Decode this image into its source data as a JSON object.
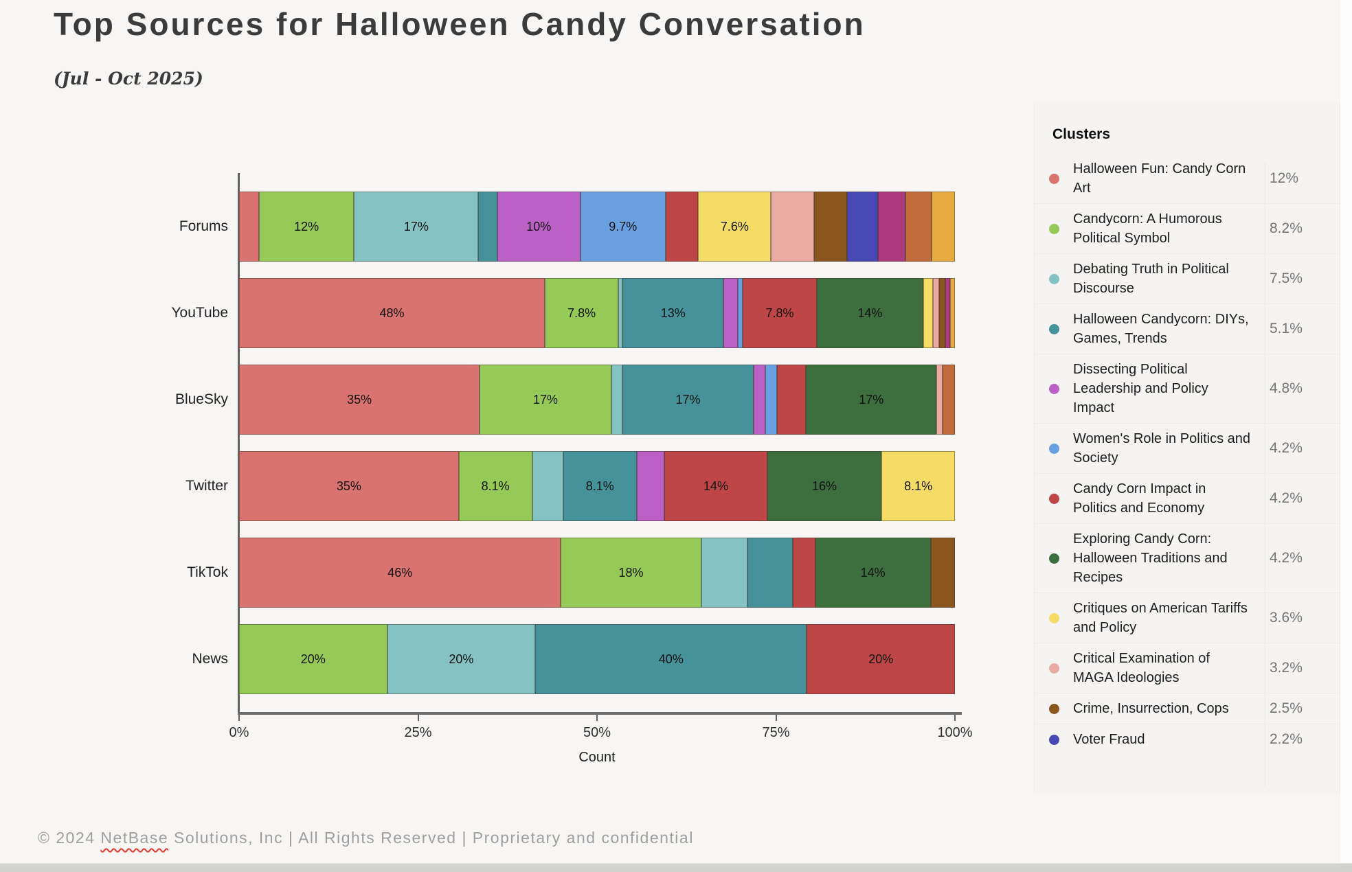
{
  "header": {
    "title": "Top Sources for Halloween Candy Conversation",
    "subtitle": "(Jul - Oct 2025)"
  },
  "palette": {
    "salmon": "#d9736f",
    "green": "#96ca58",
    "lightteal": "#85c3c3",
    "darkteal": "#45929a",
    "purple": "#bb61c6",
    "blue": "#69a0e2",
    "red": "#bf4646",
    "darkgreen": "#3d6f3e",
    "yellow": "#f4dc66",
    "pink": "#e9aba3",
    "brown": "#8b561d",
    "indigo": "#4848b4",
    "magenta": "#ad3a7c",
    "sienna": "#c26b3b",
    "amber": "#e6aa40"
  },
  "chart_data": {
    "type": "bar",
    "orientation": "horizontal",
    "stacked": true,
    "xlabel": "Count",
    "x_ticks": [
      "0%",
      "25%",
      "50%",
      "75%",
      "100%"
    ],
    "xlim": [
      0,
      100
    ],
    "grid": false,
    "legend_position": "right",
    "categories": [
      "Forums",
      "YouTube",
      "BlueSky",
      "Twitter",
      "TikTok",
      "News"
    ],
    "series": [
      {
        "name": "Halloween Fun: Candy Corn Art",
        "color_key": "salmon",
        "values": [
          3.4,
          48,
          35,
          35,
          46.3,
          0
        ],
        "seg_labels": [
          "",
          "48%",
          "35%",
          "35%",
          "46%",
          ""
        ]
      },
      {
        "name": "Candycorn: A Humorous Political Symbol",
        "color_key": "green",
        "values": [
          12,
          7.8,
          17.3,
          8.1,
          18,
          20
        ],
        "seg_labels": [
          "12%",
          "7.8%",
          "17%",
          "8.1%",
          "18%",
          "20%"
        ]
      },
      {
        "name": "Debating Truth in Political Discourse",
        "color_key": "lightteal",
        "values": [
          17,
          0.7,
          1.8,
          5.6,
          7.2,
          20
        ],
        "seg_labels": [
          "17%",
          "",
          "",
          "",
          "",
          "20%"
        ]
      },
      {
        "name": "Halloween Candycorn: DIYs, Games, Trends",
        "color_key": "darkteal",
        "values": [
          3.2,
          13,
          17.3,
          8.1,
          7.1,
          40
        ],
        "seg_labels": [
          "",
          "13%",
          "17%",
          "8.1%",
          "",
          "40%"
        ]
      },
      {
        "name": "Dissecting Political Leadership and Policy Impact",
        "color_key": "purple",
        "values": [
          10,
          2.4,
          1.9,
          5.0,
          0,
          0
        ],
        "seg_labels": [
          "10%",
          "",
          "",
          "",
          "",
          ""
        ]
      },
      {
        "name": "Women's Role in Politics and Society",
        "color_key": "blue",
        "values": [
          9.7,
          0.9,
          1.9,
          0,
          0,
          0
        ],
        "seg_labels": [
          "9.7%",
          "",
          "",
          "",
          "",
          ""
        ]
      },
      {
        "name": "Candy Corn Impact in Politics and Economy",
        "color_key": "red",
        "values": [
          5.6,
          7.8,
          4.7,
          14,
          3.5,
          20
        ],
        "seg_labels": [
          "",
          "7.8%",
          "",
          "14%",
          "",
          "20%"
        ]
      },
      {
        "name": "Exploring Candy Corn: Halloween Traditions and Recipes",
        "color_key": "darkgreen",
        "values": [
          0,
          14,
          17.1,
          16.1,
          14.1,
          0
        ],
        "seg_labels": [
          "",
          "14%",
          "17%",
          "16%",
          "14%",
          ""
        ]
      },
      {
        "name": "Critiques on American Tariffs and Policy",
        "color_key": "yellow",
        "values": [
          7.6,
          1.7,
          0,
          8.1,
          0,
          0
        ],
        "seg_labels": [
          "7.6%",
          "",
          "",
          "8.1%",
          "",
          ""
        ]
      },
      {
        "name": "Critical Examination of MAGA Ideologies",
        "color_key": "pink",
        "values": [
          7.4,
          1.0,
          1.0,
          0,
          0,
          0
        ],
        "seg_labels": [
          "",
          "",
          "",
          "",
          "",
          ""
        ]
      },
      {
        "name": "Crime, Insurrection, Cops",
        "color_key": "brown",
        "values": [
          5.6,
          1.0,
          0,
          0,
          3.8,
          0
        ],
        "seg_labels": [
          "",
          "",
          "",
          "",
          "",
          ""
        ]
      },
      {
        "name": "Voter Fraud",
        "color_key": "indigo",
        "values": [
          5.3,
          0,
          0,
          0,
          0,
          0
        ],
        "seg_labels": [
          "",
          "",
          "",
          "",
          "",
          ""
        ]
      },
      {
        "name": "",
        "color_key": "magenta",
        "values": [
          4.7,
          0.9,
          0,
          0,
          0,
          0
        ],
        "seg_labels": [
          "",
          "",
          "",
          "",
          "",
          ""
        ]
      },
      {
        "name": "",
        "color_key": "sienna",
        "values": [
          4.4,
          0,
          2.0,
          0,
          0,
          0
        ],
        "seg_labels": [
          "",
          "",
          "",
          "",
          "",
          ""
        ]
      },
      {
        "name": "",
        "color_key": "amber",
        "values": [
          4.0,
          0.8,
          0,
          0,
          0,
          0
        ],
        "seg_labels": [
          "",
          "",
          "",
          "",
          "",
          ""
        ]
      }
    ]
  },
  "legend": {
    "title": "Clusters",
    "items": [
      {
        "label": "Halloween Fun: Candy Corn Art",
        "pct": "12%",
        "color_key": "salmon"
      },
      {
        "label": "Candycorn: A Humorous Political Symbol",
        "pct": "8.2%",
        "color_key": "green"
      },
      {
        "label": "Debating Truth in Political Discourse",
        "pct": "7.5%",
        "color_key": "lightteal"
      },
      {
        "label": "Halloween Candycorn: DIYs, Games, Trends",
        "pct": "5.1%",
        "color_key": "darkteal"
      },
      {
        "label": "Dissecting Political Leadership and Policy Impact",
        "pct": "4.8%",
        "color_key": "purple"
      },
      {
        "label": "Women's Role in Politics and Society",
        "pct": "4.2%",
        "color_key": "blue"
      },
      {
        "label": "Candy Corn Impact in Politics and Economy",
        "pct": "4.2%",
        "color_key": "red"
      },
      {
        "label": "Exploring Candy Corn: Halloween Traditions and Recipes",
        "pct": "4.2%",
        "color_key": "darkgreen"
      },
      {
        "label": "Critiques on American Tariffs and Policy",
        "pct": "3.6%",
        "color_key": "yellow"
      },
      {
        "label": "Critical Examination of MAGA Ideologies",
        "pct": "3.2%",
        "color_key": "pink"
      },
      {
        "label": "Crime, Insurrection, Cops",
        "pct": "2.5%",
        "color_key": "brown"
      },
      {
        "label": "Voter Fraud",
        "pct": "2.2%",
        "color_key": "indigo"
      }
    ]
  },
  "footer": {
    "prefix": "© 2024 ",
    "brand": "NetBase",
    "suffix": " Solutions, Inc | All Rights Reserved | Proprietary and confidential"
  }
}
